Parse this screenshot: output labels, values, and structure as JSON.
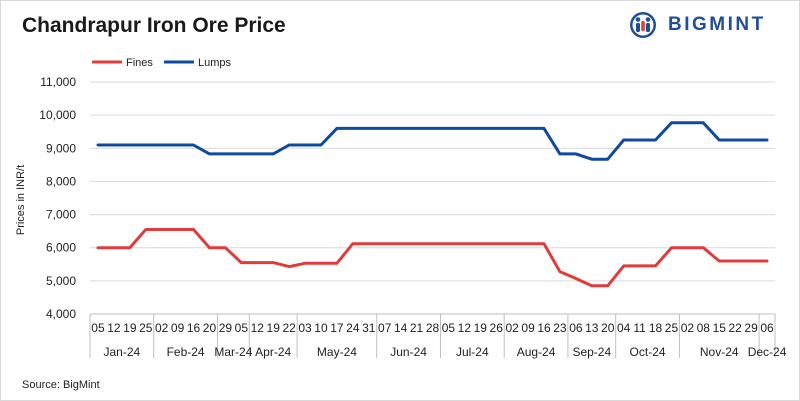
{
  "title": "Chandrapur Iron Ore Price",
  "source": "Source: BigMint",
  "logo": {
    "text": "BIGMINT",
    "color": "#1f4e9a",
    "icon": "bigmint-logo-icon"
  },
  "chart_data": {
    "type": "line",
    "title": "Chandrapur Iron Ore Price",
    "ylabel": "Prices in INR/t",
    "xlabel": "",
    "ylim": [
      4000,
      11000
    ],
    "yticks": [
      "4,000",
      "5,000",
      "6,000",
      "7,000",
      "8,000",
      "9,000",
      "10,000",
      "11,000"
    ],
    "ytick_values": [
      4000,
      5000,
      6000,
      7000,
      8000,
      9000,
      10000,
      11000
    ],
    "grid": "horizontal",
    "legend": "top-left",
    "x": [
      "05",
      "12",
      "19",
      "25",
      "02",
      "09",
      "16",
      "20",
      "29",
      "05",
      "12",
      "19",
      "22",
      "03",
      "10",
      "17",
      "24",
      "31",
      "07",
      "14",
      "21",
      "28",
      "05",
      "12",
      "19",
      "26",
      "02",
      "09",
      "16",
      "23",
      "06",
      "13",
      "20",
      "04",
      "11",
      "18",
      "25",
      "02",
      "08",
      "15",
      "22",
      "29",
      "06"
    ],
    "months": [
      {
        "label": "Jan-24",
        "start": 0,
        "end": 3
      },
      {
        "label": "Feb-24",
        "start": 4,
        "end": 7
      },
      {
        "label": "Mar-24",
        "start": 8,
        "end": 9
      },
      {
        "label": "Apr-24",
        "start": 10,
        "end": 12
      },
      {
        "label": "May-24",
        "start": 13,
        "end": 17
      },
      {
        "label": "Jun-24",
        "start": 18,
        "end": 21
      },
      {
        "label": "Jul-24",
        "start": 22,
        "end": 25
      },
      {
        "label": "Aug-24",
        "start": 26,
        "end": 29
      },
      {
        "label": "Sep-24",
        "start": 30,
        "end": 32
      },
      {
        "label": "Oct-24",
        "start": 33,
        "end": 36
      },
      {
        "label": "Nov-24",
        "start": 37,
        "end": 41
      },
      {
        "label": "Dec-24",
        "start": 42,
        "end": 42
      }
    ],
    "series": [
      {
        "name": "Fines",
        "color": "#e03c3c",
        "values": [
          6000,
          6000,
          6000,
          6550,
          6550,
          6550,
          6550,
          6000,
          6000,
          5550,
          5550,
          5550,
          5430,
          5530,
          5530,
          5530,
          6120,
          6120,
          6120,
          6120,
          6120,
          6120,
          6120,
          6120,
          6120,
          6120,
          6120,
          6120,
          6120,
          5280,
          5070,
          4850,
          4850,
          5450,
          5450,
          5450,
          6000,
          6000,
          6000,
          5600,
          5600,
          5600,
          5600
        ]
      },
      {
        "name": "Lumps",
        "color": "#0f4a9e",
        "values": [
          9100,
          9100,
          9100,
          9100,
          9100,
          9100,
          9100,
          8830,
          8830,
          8830,
          8830,
          8830,
          9100,
          9100,
          9100,
          9600,
          9600,
          9600,
          9600,
          9600,
          9600,
          9600,
          9600,
          9600,
          9600,
          9600,
          9600,
          9600,
          9600,
          8830,
          8830,
          8670,
          8670,
          9250,
          9250,
          9250,
          9770,
          9770,
          9770,
          9250,
          9250,
          9250,
          9250
        ]
      }
    ]
  }
}
